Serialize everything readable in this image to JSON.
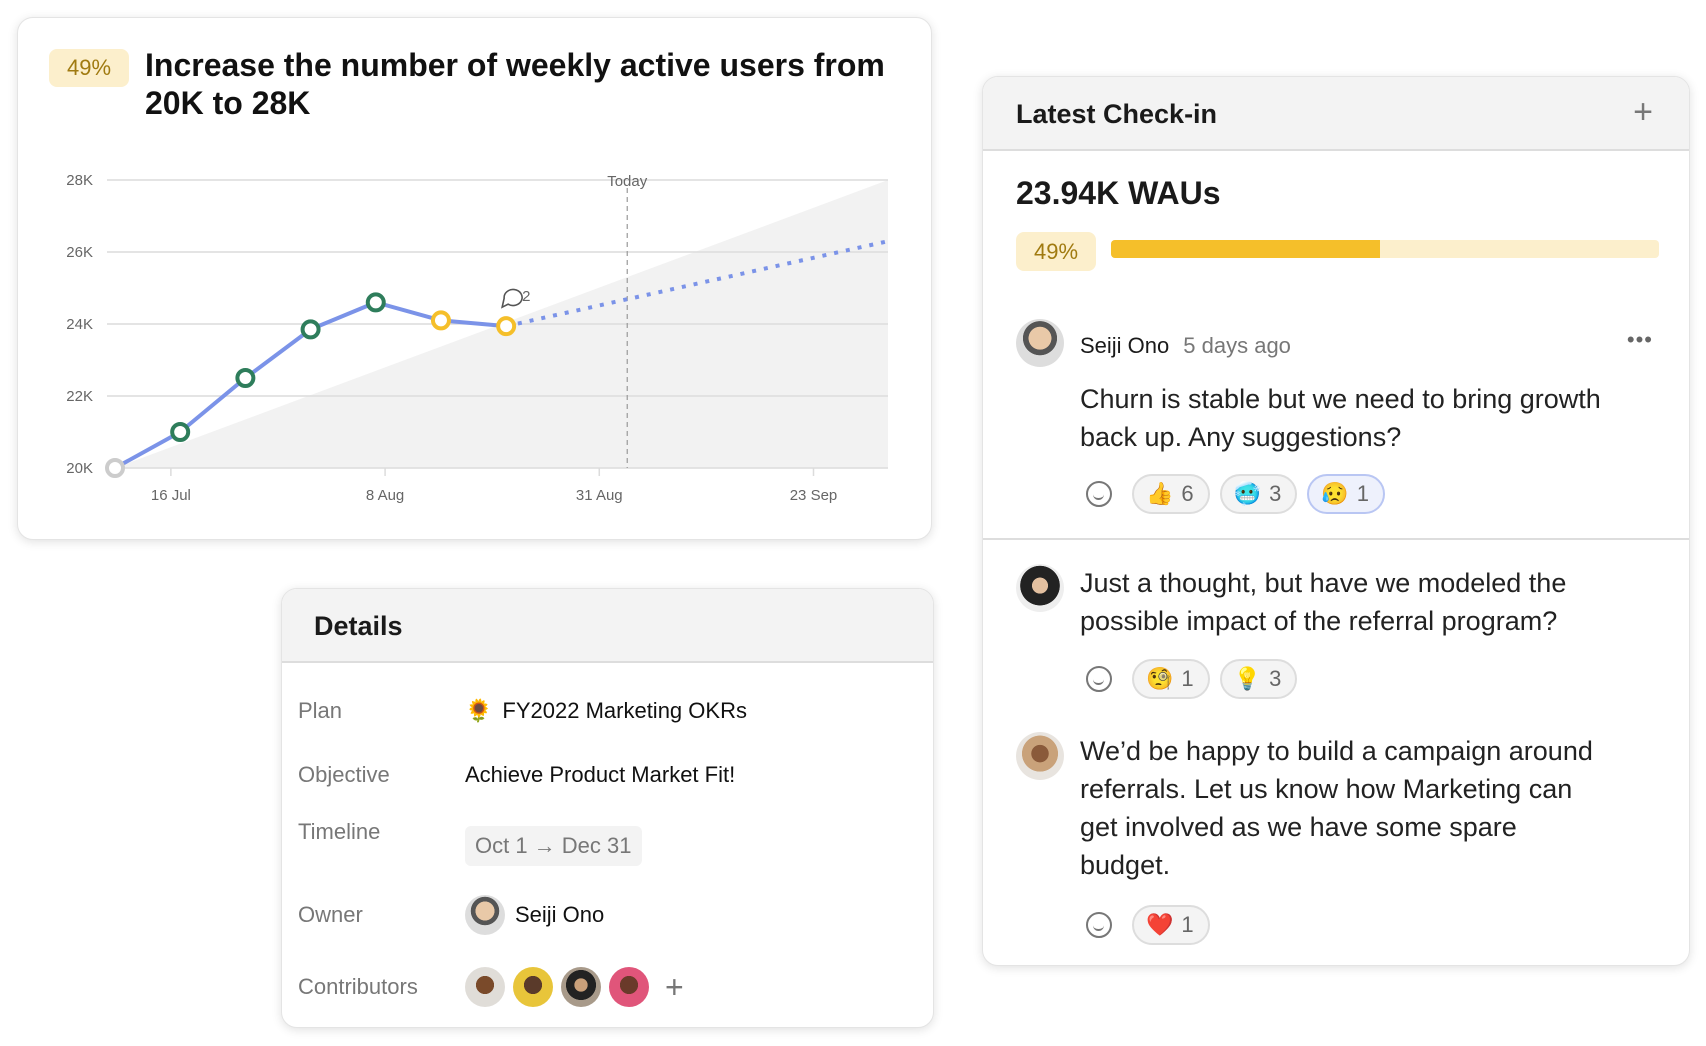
{
  "key_result": {
    "progress_label": "49%",
    "progress": 0.49,
    "title": "Increase the number of weekly active users from 20K to 28K"
  },
  "chart_data": {
    "type": "line",
    "y_ticks": [
      "20K",
      "22K",
      "24K",
      "26K",
      "28K"
    ],
    "ylim": [
      20000,
      28000
    ],
    "x_ticks": [
      "16 Jul",
      "8 Aug",
      "31 Aug",
      "23 Sep"
    ],
    "today_label": "Today",
    "today": "2021-09-03",
    "grid": true,
    "series": [
      {
        "x": [
          "2021-07-10",
          "2021-07-17",
          "2021-07-24",
          "2021-07-31",
          "2021-08-07",
          "2021-08-14",
          "2021-08-21"
        ],
        "values": [
          20000,
          21000,
          22500,
          23850,
          24600,
          24100,
          23940
        ],
        "status": [
          "start",
          "on-track",
          "on-track",
          "on-track",
          "on-track",
          "at-risk",
          "at-risk"
        ]
      }
    ],
    "projection": {
      "from": [
        "2021-08-21",
        23940
      ],
      "to": [
        "2021-10-01",
        26300
      ]
    },
    "target": {
      "from": [
        "2021-07-10",
        20000
      ],
      "to": [
        "2021-10-01",
        28000
      ]
    },
    "comment_count": "2",
    "colors": {
      "line": "#7b93e8",
      "on_track": "#2e7d5b",
      "at_risk": "#f5bf2a",
      "start": "#cccccc",
      "target_area": "#f2f2f2"
    }
  },
  "checkin": {
    "title": "Latest Check-in",
    "add_icon": "plus-icon",
    "metric": "23.94K WAUs",
    "progress_label": "49%",
    "progress": 0.49,
    "comments": [
      {
        "author": "Seiji Ono",
        "time": "5 days ago",
        "lines": [
          "Churn is stable but we need to bring growth",
          "back up. Any suggestions?"
        ],
        "reactions": [
          {
            "emoji": "👍",
            "count": "6"
          },
          {
            "emoji": "🥶",
            "count": "3"
          },
          {
            "emoji": "😥",
            "count": "1",
            "active": true
          }
        ]
      },
      {
        "lines": [
          "Just a thought, but have we modeled the",
          "possible impact of the referral program?"
        ],
        "reactions": [
          {
            "emoji": "🧐",
            "count": "1"
          },
          {
            "emoji": "💡",
            "count": "3"
          }
        ]
      },
      {
        "lines": [
          "We’d be happy to build a campaign around",
          "referrals. Let us know how Marketing can",
          "get involved as we have some spare",
          "budget."
        ],
        "reactions": [
          {
            "emoji": "❤️",
            "count": "1"
          }
        ]
      }
    ]
  },
  "details": {
    "title": "Details",
    "plan_label": "Plan",
    "plan_emoji": "🌻",
    "plan": "FY2022 Marketing OKRs",
    "objective_label": "Objective",
    "objective": "Achieve Product Market Fit!",
    "timeline_label": "Timeline",
    "timeline": "Oct 1 → Dec 31",
    "owner_label": "Owner",
    "owner": "Seiji Ono",
    "contributors_label": "Contributors"
  }
}
